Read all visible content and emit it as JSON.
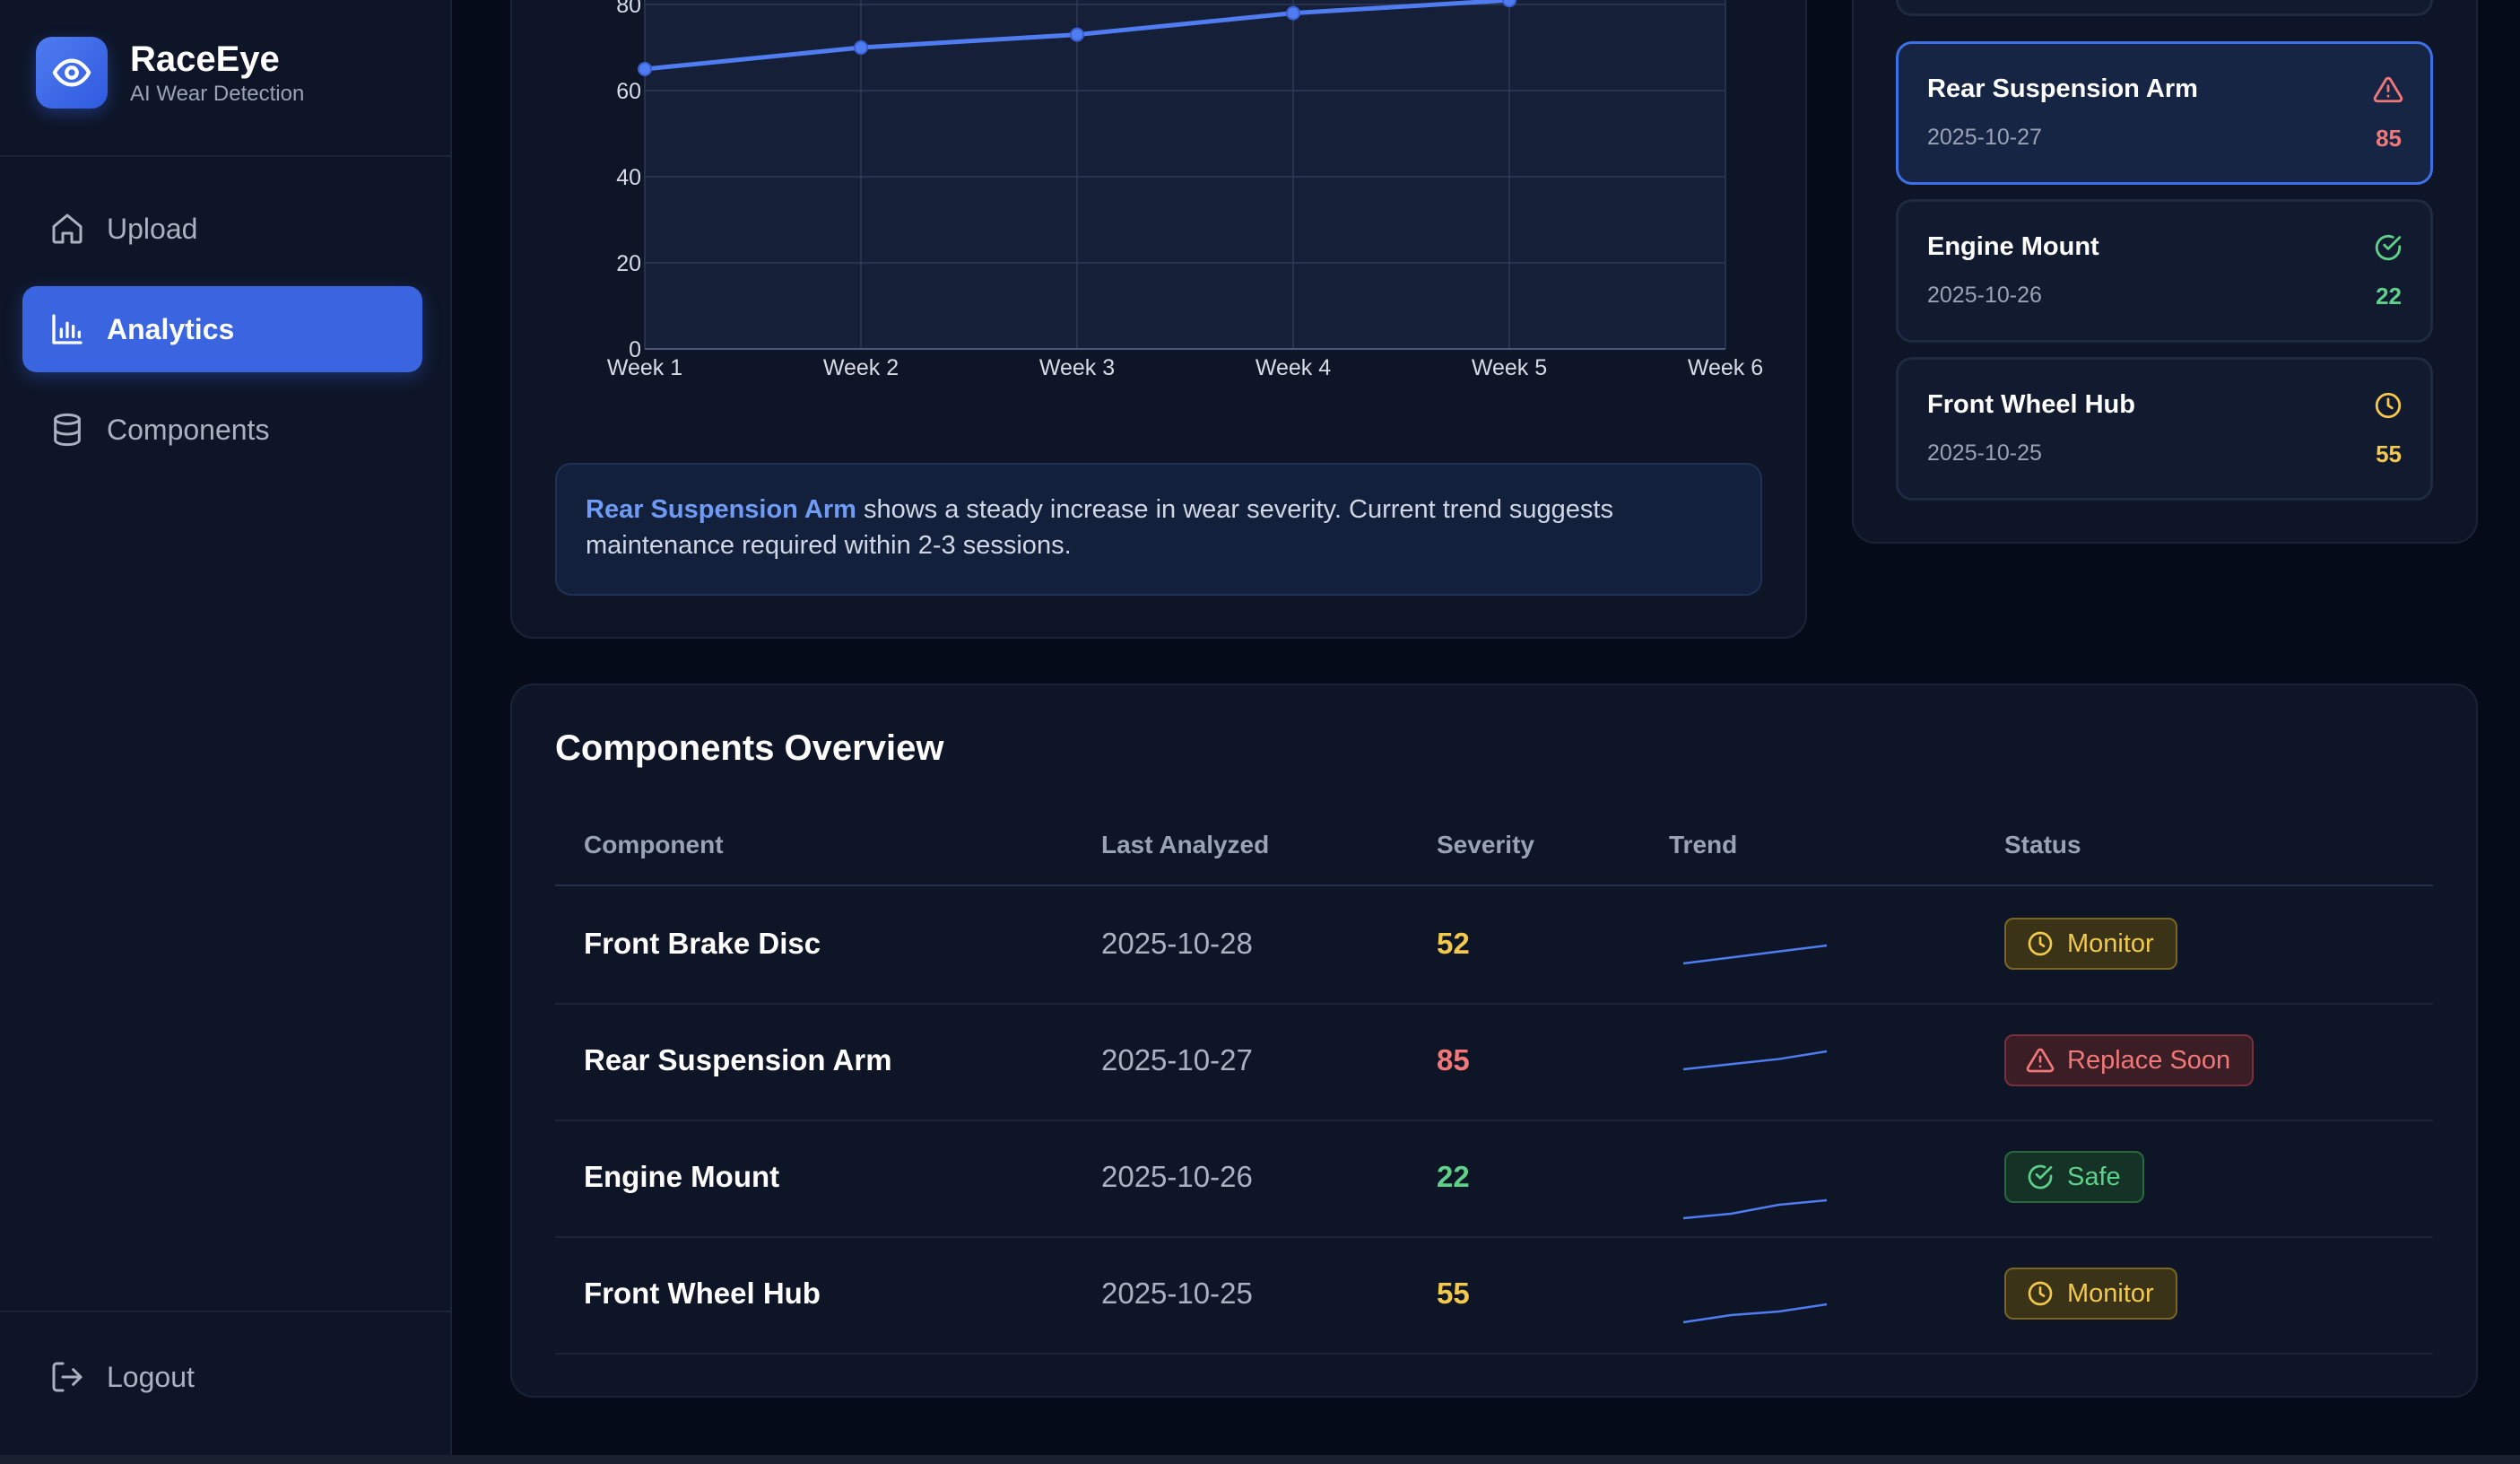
{
  "brand": {
    "name": "RaceEye",
    "subtitle": "AI Wear Detection"
  },
  "nav": {
    "items": [
      {
        "label": "Upload",
        "icon": "home-icon",
        "active": false
      },
      {
        "label": "Analytics",
        "icon": "bar-chart-icon",
        "active": true
      },
      {
        "label": "Components",
        "icon": "database-icon",
        "active": false
      }
    ],
    "logout_label": "Logout"
  },
  "chart_data": {
    "type": "line",
    "categories": [
      "Week 1",
      "Week 2",
      "Week 3",
      "Week 4",
      "Week 5",
      "Week 6"
    ],
    "series": [
      {
        "name": "Rear Suspension Arm",
        "values": [
          65,
          70,
          73,
          78,
          81,
          null
        ]
      }
    ],
    "y_ticks": [
      0,
      20,
      40,
      60,
      80
    ],
    "ylim": [
      0,
      100
    ],
    "grid": true,
    "color": "#4f7cf0"
  },
  "insight": {
    "highlight": "Rear Suspension Arm",
    "text": " shows a steady increase in wear severity. Current trend suggests maintenance required within 2-3 sessions."
  },
  "recent": {
    "items": [
      {
        "name": "Rear Suspension Arm",
        "date": "2025-10-27",
        "score": "85",
        "status": "replace",
        "selected": true
      },
      {
        "name": "Engine Mount",
        "date": "2025-10-26",
        "score": "22",
        "status": "safe",
        "selected": false
      },
      {
        "name": "Front Wheel Hub",
        "date": "2025-10-25",
        "score": "55",
        "status": "monitor",
        "selected": false
      }
    ]
  },
  "overview": {
    "title": "Components Overview",
    "columns": [
      "Component",
      "Last Analyzed",
      "Severity",
      "Trend",
      "Status"
    ],
    "rows": [
      {
        "component": "Front Brake Disc",
        "date": "2025-10-28",
        "severity": "52",
        "status": "Monitor",
        "kind": "monitor",
        "trend": [
          40,
          44,
          48,
          52
        ]
      },
      {
        "component": "Rear Suspension Arm",
        "date": "2025-10-27",
        "severity": "85",
        "status": "Replace Soon",
        "kind": "replace",
        "trend": [
          78,
          80,
          82,
          85
        ]
      },
      {
        "component": "Engine Mount",
        "date": "2025-10-26",
        "severity": "22",
        "status": "Safe",
        "kind": "safe",
        "trend": [
          18,
          19,
          21,
          22
        ]
      },
      {
        "component": "Front Wheel Hub",
        "date": "2025-10-25",
        "severity": "55",
        "status": "Monitor",
        "kind": "monitor",
        "trend": [
          50,
          52,
          53,
          55
        ]
      }
    ]
  },
  "colors": {
    "accent": "#3a64e0",
    "monitor": "#f2c94c",
    "replace": "#f07878",
    "safe": "#5fd08a",
    "line": "#4f7cf0"
  }
}
